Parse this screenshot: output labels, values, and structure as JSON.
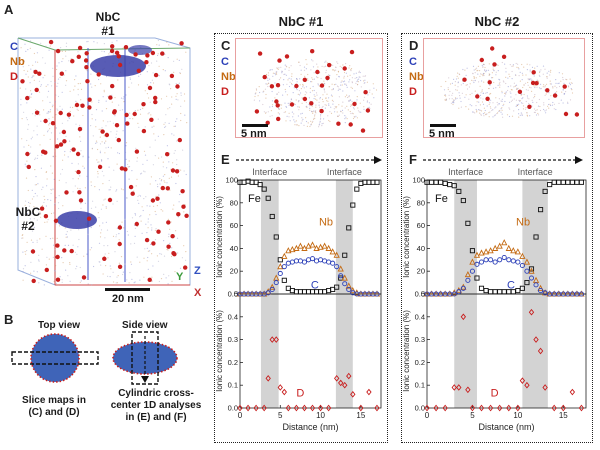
{
  "panels": {
    "A": {
      "letter": "A",
      "label_top": "NbC",
      "label_top2": "#1",
      "label_lower": "NbC",
      "label_lower2": "#2",
      "legend": [
        "C",
        "Nb",
        "D"
      ],
      "scale": "20 nm",
      "axes": {
        "y": "Y",
        "z": "Z",
        "x": "X"
      }
    },
    "B": {
      "letter": "B",
      "top_view": "Top view",
      "side_view": "Side view",
      "caption_left": [
        "Slice maps in",
        "(C) and (D)"
      ],
      "caption_right": [
        "Cylindric cross-",
        "center 1D analyses",
        "in (E) and (F)"
      ]
    },
    "C": {
      "letter": "C",
      "title": "NbC #1",
      "legend": [
        "C",
        "Nb",
        "D"
      ],
      "scale": "5 nm"
    },
    "D": {
      "letter": "D",
      "title": "NbC #2",
      "legend": [
        "C",
        "Nb",
        "D"
      ],
      "scale": "5 nm"
    },
    "E": {
      "letter": "E"
    },
    "F": {
      "letter": "F"
    }
  },
  "colors": {
    "C": "#2b3fb8",
    "Nb": "#c46a12",
    "D": "#c81e1e",
    "Fe": "#111111",
    "interface": "#d3d3d3"
  },
  "chart_data": [
    {
      "type": "scatter",
      "panel": "E",
      "top": {
        "ylabel": "Ionic concentration (%)",
        "ylim": [
          0,
          100
        ],
        "yticks": [
          "0",
          "20",
          "40",
          "60",
          "80",
          "100"
        ],
        "interfaces": [
          {
            "label": "Interface",
            "range": [
              2.6,
              4.8
            ]
          },
          {
            "label": "Interface",
            "range": [
              11.9,
              14.0
            ]
          }
        ],
        "series": [
          {
            "name": "Fe",
            "marker": "square",
            "x": [
              0,
              0.5,
              1,
              1.5,
              2,
              2.5,
              3,
              3.5,
              4,
              4.5,
              5,
              5.5,
              6,
              6.5,
              7,
              7.5,
              8,
              8.5,
              9,
              9.5,
              10,
              10.5,
              11,
              11.5,
              12,
              12.5,
              13,
              13.5,
              14,
              14.5,
              15,
              15.5,
              16,
              16.5,
              17
            ],
            "y": [
              98,
              98,
              99,
              98,
              98,
              96,
              92,
              84,
              68,
              50,
              30,
              12,
              5,
              3,
              2,
              2,
              2,
              2,
              2,
              2,
              2,
              2,
              3,
              4,
              6,
              14,
              34,
              58,
              78,
              92,
              97,
              98,
              98,
              98,
              98
            ]
          },
          {
            "name": "Nb",
            "marker": "triangle",
            "x": [
              0,
              0.5,
              1,
              1.5,
              2,
              2.5,
              3,
              3.5,
              4,
              4.5,
              5,
              5.5,
              6,
              6.5,
              7,
              7.5,
              8,
              8.5,
              9,
              9.5,
              10,
              10.5,
              11,
              11.5,
              12,
              12.5,
              13,
              13.5,
              14,
              14.5,
              15,
              15.5,
              16,
              16.5,
              17
            ],
            "y": [
              0,
              0,
              0,
              0,
              0,
              0,
              0,
              2,
              6,
              14,
              24,
              33,
              38,
              39,
              40,
              42,
              40,
              42,
              43,
              40,
              41,
              42,
              40,
              37,
              34,
              22,
              14,
              7,
              3,
              1,
              0,
              0,
              0,
              0,
              0
            ]
          },
          {
            "name": "C",
            "marker": "circle",
            "x": [
              0,
              0.5,
              1,
              1.5,
              2,
              2.5,
              3,
              3.5,
              4,
              4.5,
              5,
              5.5,
              6,
              6.5,
              7,
              7.5,
              8,
              8.5,
              9,
              9.5,
              10,
              10.5,
              11,
              11.5,
              12,
              12.5,
              13,
              13.5,
              14,
              14.5,
              15,
              15.5,
              16,
              16.5,
              17
            ],
            "y": [
              0,
              0,
              0,
              0,
              0,
              0,
              0,
              1,
              4,
              10,
              18,
              24,
              27,
              28,
              29,
              29,
              28,
              30,
              31,
              29,
              30,
              29,
              28,
              27,
              24,
              16,
              9,
              4,
              1,
              0,
              0,
              0,
              0,
              0,
              0
            ]
          }
        ]
      },
      "bottom": {
        "ylabel": "Ionic concentration (%)",
        "ylim": [
          0,
          0.5
        ],
        "yticks": [
          "0.0",
          "0.1",
          "0.2",
          "0.3",
          "0.4",
          "0.5"
        ],
        "xlabel": "Distance (nm)",
        "xlim": [
          0,
          17.5
        ],
        "xticks": [
          "0",
          "5",
          "10",
          "15"
        ],
        "series": [
          {
            "name": "D",
            "marker": "diamond",
            "x": [
              0,
              1,
              2,
              3,
              3.5,
              4,
              4.5,
              5,
              5.5,
              6,
              7,
              8,
              9,
              10,
              11,
              12,
              12.5,
              13,
              13.5,
              14,
              15,
              16,
              17
            ],
            "y": [
              0,
              0,
              0,
              0,
              0.13,
              0.3,
              0.3,
              0.09,
              0.07,
              0,
              0,
              0,
              0,
              0,
              0,
              0.13,
              0.11,
              0.1,
              0.14,
              0.06,
              0,
              0.07,
              0
            ]
          }
        ]
      }
    },
    {
      "type": "scatter",
      "panel": "F",
      "top": {
        "ylabel": "Ionic concentration (%)",
        "ylim": [
          0,
          100
        ],
        "yticks": [
          "0",
          "20",
          "40",
          "60",
          "80",
          "100"
        ],
        "interfaces": [
          {
            "label": "Interface",
            "range": [
              3.0,
              5.5
            ]
          },
          {
            "label": "Interface",
            "range": [
              10.5,
              13.3
            ]
          }
        ],
        "series": [
          {
            "name": "Fe",
            "marker": "square",
            "x": [
              0,
              0.5,
              1,
              1.5,
              2,
              2.5,
              3,
              3.5,
              4,
              4.5,
              5,
              5.5,
              6,
              6.5,
              7,
              7.5,
              8,
              8.5,
              9,
              9.5,
              10,
              10.5,
              11,
              11.5,
              12,
              12.5,
              13,
              13.5,
              14,
              14.5,
              15,
              15.5,
              16,
              16.5,
              17
            ],
            "y": [
              98,
              98,
              98,
              98,
              97,
              96,
              95,
              90,
              82,
              62,
              38,
              14,
              5,
              3,
              2,
              2,
              2,
              2,
              2,
              2,
              3,
              5,
              10,
              22,
              50,
              74,
              90,
              96,
              98,
              98,
              98,
              98,
              98,
              98,
              98
            ]
          },
          {
            "name": "Nb",
            "marker": "triangle",
            "x": [
              0,
              0.5,
              1,
              1.5,
              2,
              2.5,
              3,
              3.5,
              4,
              4.5,
              5,
              5.5,
              6,
              6.5,
              7,
              7.5,
              8,
              8.5,
              9,
              9.5,
              10,
              10.5,
              11,
              11.5,
              12,
              12.5,
              13,
              13.5,
              14,
              14.5,
              15,
              15.5,
              16,
              16.5,
              17
            ],
            "y": [
              0,
              0,
              0,
              0,
              0,
              0,
              1,
              3,
              6,
              17,
              28,
              34,
              36,
              37,
              38,
              40,
              42,
              45,
              40,
              38,
              37,
              33,
              28,
              20,
              12,
              5,
              1,
              0,
              0,
              0,
              0,
              0,
              0,
              0,
              0
            ]
          },
          {
            "name": "C",
            "marker": "circle",
            "x": [
              0,
              0.5,
              1,
              1.5,
              2,
              2.5,
              3,
              3.5,
              4,
              4.5,
              5,
              5.5,
              6,
              6.5,
              7,
              7.5,
              8,
              8.5,
              9,
              9.5,
              10,
              10.5,
              11,
              11.5,
              12,
              12.5,
              13,
              13.5,
              14,
              14.5,
              15,
              15.5,
              16,
              16.5,
              17
            ],
            "y": [
              0,
              0,
              0,
              0,
              0,
              0,
              0,
              2,
              5,
              12,
              20,
              26,
              28,
              30,
              30,
              28,
              30,
              32,
              30,
              29,
              28,
              25,
              20,
              14,
              8,
              3,
              1,
              0,
              0,
              0,
              0,
              0,
              0,
              0,
              0
            ]
          }
        ]
      },
      "bottom": {
        "ylabel": "Ionic concentration (%)",
        "ylim": [
          0,
          0.5
        ],
        "yticks": [
          "0.0",
          "0.1",
          "0.2",
          "0.3",
          "0.4",
          "0.5"
        ],
        "xlabel": "Distance (nm)",
        "xlim": [
          0,
          17.5
        ],
        "xticks": [
          "0",
          "5",
          "10",
          "15"
        ],
        "series": [
          {
            "name": "D",
            "marker": "diamond",
            "x": [
              0,
              1,
              2,
              3,
              3.5,
              4,
              4.5,
              5,
              6,
              7,
              8,
              9,
              10,
              10.5,
              11,
              11.5,
              12,
              12.5,
              13,
              14,
              15,
              16,
              17
            ],
            "y": [
              0,
              0,
              0,
              0.09,
              0.09,
              0.4,
              0.08,
              0,
              0,
              0,
              0,
              0,
              0,
              0.12,
              0.1,
              0.42,
              0.3,
              0.25,
              0.09,
              0,
              0,
              0.07,
              0
            ]
          }
        ]
      }
    }
  ]
}
